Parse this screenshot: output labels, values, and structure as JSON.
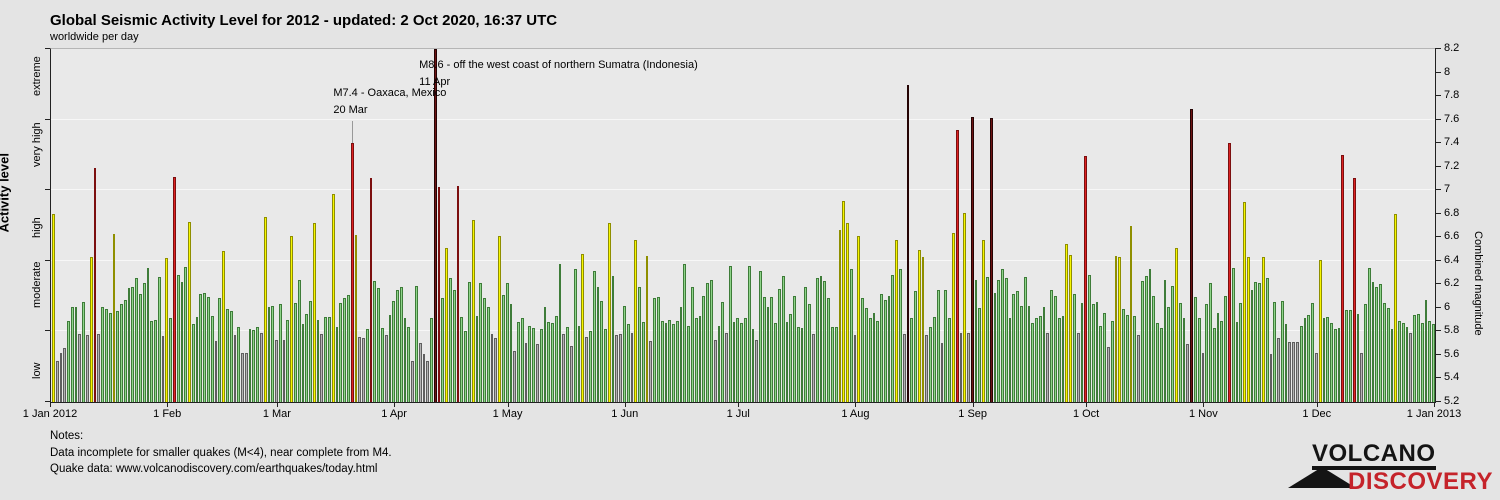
{
  "title": "Global Seismic Activity Level for 2012 - updated:  2 Oct 2020, 16:37 UTC",
  "subtitle": "worldwide per day",
  "left_axis": {
    "label": "Activity level",
    "categories": [
      "low",
      "moderate",
      "high",
      "very high",
      "extreme"
    ],
    "tick_values": [
      5.2,
      5.8,
      6.4,
      7.0,
      7.6,
      8.2
    ]
  },
  "right_axis": {
    "label": "Combined magnitude",
    "min": 5.2,
    "max": 8.2,
    "tick_step": 0.2
  },
  "x_axis": {
    "labels": [
      {
        "text": "1 Jan 2012",
        "day": 0
      },
      {
        "text": "1 Feb",
        "day": 31
      },
      {
        "text": "1 Mar",
        "day": 60
      },
      {
        "text": "1 Apr",
        "day": 91
      },
      {
        "text": "1 May",
        "day": 121
      },
      {
        "text": "1 Jun",
        "day": 152
      },
      {
        "text": "1 Jul",
        "day": 182
      },
      {
        "text": "1 Aug",
        "day": 213
      },
      {
        "text": "1 Sep",
        "day": 244
      },
      {
        "text": "1 Oct",
        "day": 274
      },
      {
        "text": "1 Nov",
        "day": 305
      },
      {
        "text": "1 Dec",
        "day": 335
      },
      {
        "text": "1 Jan 2013",
        "day": 366
      }
    ]
  },
  "annotations": [
    {
      "line1": "M8.6 - off the west coast of northern Sumatra (Indonesia)",
      "line2": "11 Apr",
      "day": 101
    },
    {
      "line1": "M7.4 - Oaxaca, Mexico",
      "line2": "20 Mar",
      "day": 79
    }
  ],
  "notes": {
    "heading": "Notes:",
    "line1": "Data incomplete for smaller quakes (M<4), near complete from M4.",
    "line2": "Quake data: www.volcanodiscovery.com/earthquakes/today.html"
  },
  "logo": {
    "line1": "VOLCANO",
    "line2": "DISCOVERY"
  },
  "colors": {
    "background": "#e4e4e4",
    "plot_background": "#e9e9e9",
    "low": "#b3b3b3",
    "moderate": "#8fd48a",
    "high": "#f7f700",
    "very_high": "#dd2222",
    "extreme": "#6e1313",
    "logo_red": "#c5232a"
  },
  "chart_data": {
    "type": "bar",
    "title": "Global Seismic Activity Level for 2012",
    "ylabel": "Combined magnitude",
    "ylabel_left": "Activity level",
    "ylim": [
      5.2,
      8.2
    ],
    "grid": "horizontal at level boundaries",
    "legend": "none",
    "level_bands": [
      {
        "label": "low",
        "range": [
          5.2,
          5.8
        ],
        "color_key": "low"
      },
      {
        "label": "moderate",
        "range": [
          5.8,
          6.4
        ],
        "color_key": "moderate"
      },
      {
        "label": "high",
        "range": [
          6.4,
          7.0
        ],
        "color_key": "high"
      },
      {
        "label": "very high",
        "range": [
          7.0,
          7.6
        ],
        "color_key": "very_high"
      },
      {
        "label": "extreme",
        "range": [
          7.6,
          8.2
        ],
        "color_key": "extreme"
      }
    ],
    "unit": "combined magnitude per day",
    "months": [
      {
        "name": "Jan",
        "values": [
          6.8,
          5.55,
          5.62,
          5.66,
          5.89,
          6.01,
          6.01,
          5.78,
          6.05,
          5.77,
          6.43,
          7.19,
          5.78,
          6.01,
          5.99,
          5.96,
          6.63,
          5.97,
          6.03,
          6.07,
          6.17,
          6.18,
          6.25,
          6.12,
          6.21,
          6.34,
          5.89,
          5.9,
          6.26,
          5.76,
          6.42
        ]
      },
      {
        "name": "Feb",
        "values": [
          5.91,
          7.11,
          6.28,
          6.22,
          6.35,
          6.73,
          5.86,
          5.92,
          6.12,
          6.13,
          6.09,
          5.93,
          5.72,
          6.08,
          6.48,
          5.99,
          5.97,
          5.77,
          5.84,
          5.62,
          5.62,
          5.82,
          5.81,
          5.84,
          5.79,
          6.77,
          6.01,
          6.02,
          5.73
        ]
      },
      {
        "name": "Mar",
        "values": [
          6.03,
          5.73,
          5.9,
          6.61,
          6.04,
          6.24,
          5.86,
          5.95,
          6.06,
          6.72,
          5.9,
          5.78,
          5.92,
          5.92,
          6.97,
          5.84,
          6.04,
          6.08,
          6.11,
          7.4,
          6.62,
          5.75,
          5.74,
          5.82,
          7.1,
          6.23,
          6.17,
          5.83,
          5.77,
          5.94,
          6.06
        ]
      },
      {
        "name": "Apr",
        "values": [
          6.15,
          6.18,
          5.91,
          5.84,
          5.55,
          6.19,
          5.7,
          5.61,
          5.55,
          5.91,
          8.6,
          7.03,
          6.08,
          6.51,
          6.25,
          6.15,
          7.04,
          5.92,
          5.8,
          6.22,
          6.75,
          5.93,
          6.21,
          6.08,
          6.01,
          5.78,
          5.74,
          6.61,
          6.11,
          6.21
        ]
      },
      {
        "name": "May",
        "values": [
          6.03,
          5.63,
          5.88,
          5.91,
          5.7,
          5.85,
          5.83,
          5.69,
          5.82,
          6.01,
          5.88,
          5.87,
          5.93,
          6.37,
          5.78,
          5.84,
          5.68,
          6.33,
          5.85,
          6.46,
          5.75,
          5.8,
          6.31,
          6.18,
          6.06,
          5.82,
          6.72,
          6.27,
          5.77,
          5.78,
          6.02
        ]
      },
      {
        "name": "Jun",
        "values": [
          5.86,
          5.79,
          6.58,
          6.18,
          5.88,
          6.44,
          5.72,
          6.08,
          6.09,
          5.89,
          5.87,
          5.9,
          5.86,
          5.89,
          6.01,
          6.37,
          5.85,
          6.18,
          5.91,
          5.93,
          6.1,
          6.21,
          6.24,
          5.73,
          5.85,
          6.05,
          5.79,
          6.36,
          5.88,
          5.91
        ]
      },
      {
        "name": "Jul",
        "values": [
          5.87,
          5.91,
          6.36,
          5.82,
          5.73,
          6.31,
          6.09,
          6.01,
          6.09,
          5.87,
          6.16,
          6.27,
          5.88,
          5.95,
          6.1,
          5.84,
          5.83,
          6.18,
          6.03,
          5.78,
          6.25,
          6.27,
          6.23,
          6.08,
          5.84,
          5.84,
          6.66,
          6.91,
          6.72,
          6.33,
          5.77
        ]
      },
      {
        "name": "Aug",
        "values": [
          6.61,
          6.08,
          6.0,
          5.91,
          5.96,
          5.89,
          6.12,
          6.07,
          6.1,
          6.28,
          6.58,
          6.33,
          5.78,
          7.89,
          5.91,
          6.14,
          6.49,
          6.43,
          5.77,
          5.84,
          5.92,
          6.15,
          5.7,
          6.15,
          5.91,
          6.64,
          7.51,
          5.79,
          6.81,
          5.79,
          7.62
        ]
      },
      {
        "name": "Sep",
        "values": [
          6.24,
          6.0,
          6.58,
          6.26,
          7.61,
          6.13,
          6.24,
          6.33,
          6.25,
          5.91,
          6.12,
          6.14,
          6.02,
          6.26,
          6.02,
          5.87,
          5.91,
          5.93,
          6.01,
          5.79,
          6.15,
          6.1,
          5.91,
          5.93,
          6.54,
          6.45,
          6.12,
          5.79,
          6.04,
          7.29
        ]
      },
      {
        "name": "Oct",
        "values": [
          6.28,
          6.03,
          6.05,
          5.85,
          5.96,
          5.67,
          5.89,
          6.44,
          6.43,
          5.99,
          5.94,
          6.7,
          5.93,
          5.77,
          6.23,
          6.27,
          6.33,
          6.1,
          5.87,
          5.83,
          6.24,
          6.01,
          6.19,
          6.51,
          6.04,
          5.91,
          5.69,
          7.69,
          6.09,
          5.91,
          5.62
        ]
      },
      {
        "name": "Nov",
        "values": [
          6.03,
          6.21,
          5.83,
          5.96,
          5.89,
          6.1,
          7.4,
          6.34,
          5.88,
          6.04,
          6.9,
          6.43,
          6.15,
          6.22,
          6.21,
          6.43,
          6.25,
          5.61,
          6.05,
          5.74,
          6.06,
          5.86,
          5.71,
          5.71,
          5.71,
          5.85,
          5.91,
          5.94,
          6.04,
          5.62
        ]
      },
      {
        "name": "Dec",
        "values": [
          6.41,
          5.91,
          5.92,
          5.87,
          5.82,
          5.83,
          7.3,
          5.98,
          5.98,
          7.1,
          5.95,
          5.62,
          6.03,
          6.34,
          6.22,
          6.18,
          6.2,
          6.04,
          6.0,
          5.82,
          6.8,
          5.89,
          5.87,
          5.84,
          5.79,
          5.94,
          5.95,
          5.87,
          6.07,
          5.89,
          5.86
        ]
      }
    ]
  }
}
